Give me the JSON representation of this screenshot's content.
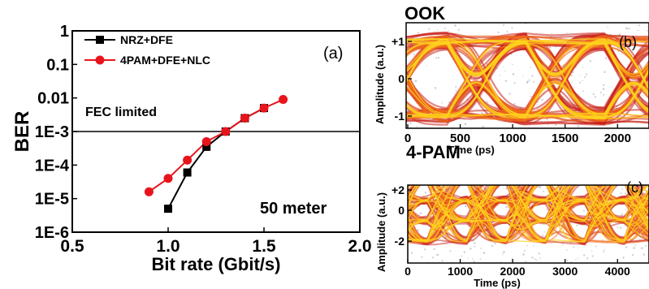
{
  "chart_data": [
    {
      "type": "line",
      "panel": "(a)",
      "xlabel": "Bit rate (Gbit/s)",
      "ylabel": "BER",
      "xlim": [
        0.5,
        2.0
      ],
      "x_ticks": [
        "0.5",
        "1.0",
        "1.5",
        "2.0"
      ],
      "y_log_range": [
        -6,
        0
      ],
      "y_ticks": [
        "1",
        "0.1",
        "0.01",
        "1E-3",
        "1E-4",
        "1E-5",
        "1E-6"
      ],
      "y_scale": "log",
      "grid": false,
      "legend_position": "top-left",
      "series": [
        {
          "name": "NRZ+DFE",
          "color": "#000000",
          "marker": "square",
          "x": [
            1.0,
            1.1,
            1.2,
            1.3,
            1.4,
            1.5
          ],
          "y": [
            5e-06,
            6e-05,
            0.00035,
            0.001,
            0.0025,
            0.005
          ]
        },
        {
          "name": "4PAM+DFE+NLC",
          "color": "#e8141b",
          "marker": "circle",
          "x": [
            0.9,
            1.0,
            1.1,
            1.2,
            1.3,
            1.4,
            1.5,
            1.6
          ],
          "y": [
            1.6e-05,
            4e-05,
            0.00014,
            0.0005,
            0.001,
            0.0025,
            0.005,
            0.009
          ]
        }
      ],
      "annotations": {
        "threshold_value": 0.001,
        "threshold_label": "FEC limited",
        "distance_label": "50 meter"
      }
    },
    {
      "type": "eye-diagram",
      "panel": "(b)",
      "title": "OOK",
      "xlabel": "Time (ps)",
      "ylabel": "Amplitude (a.u.)",
      "xlim": [
        0,
        2300
      ],
      "x_ticks": [
        "0",
        "500",
        "1000",
        "1500",
        "2000"
      ],
      "y_ticks": [
        "+1",
        "0",
        "-1"
      ],
      "levels": [
        -1,
        1
      ],
      "eye_centers_ps": [
        0,
        750,
        1500,
        2250
      ]
    },
    {
      "type": "eye-diagram",
      "panel": "(c)",
      "title": "4-PAM",
      "xlabel": "Time (ps)",
      "ylabel": "Amplitude (a.u.)",
      "xlim": [
        0,
        4600
      ],
      "x_ticks": [
        "0",
        "1000",
        "2000",
        "3000",
        "4000"
      ],
      "y_ticks": [
        "+2",
        "0",
        "-2"
      ],
      "levels": [
        -3,
        -1,
        1,
        3
      ],
      "eye_centers_ps": [
        0,
        750,
        2250,
        3750
      ]
    }
  ],
  "colors": {
    "eye_dark": "#c8201a",
    "eye_mid": "#f06a1c",
    "eye_light": "#ffd21e",
    "eye_noise": "#9a9a9a"
  }
}
